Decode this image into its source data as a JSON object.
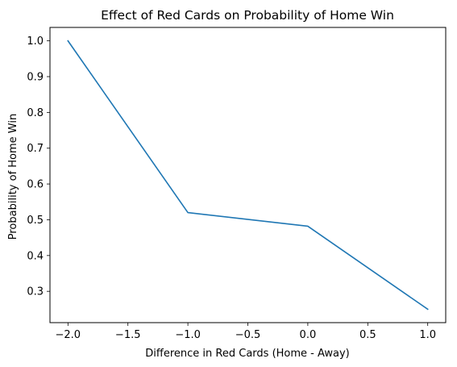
{
  "chart_data": {
    "type": "line",
    "title": "Effect of Red Cards on Probability of Home Win",
    "xlabel": "Difference in Red Cards (Home - Away)",
    "ylabel": "Probability of Home Win",
    "x": [
      -2.0,
      -1.0,
      0.0,
      1.0
    ],
    "series": [
      {
        "values": [
          1.0,
          0.52,
          0.482,
          0.25
        ]
      }
    ],
    "xlim": [
      -2.15,
      1.15
    ],
    "ylim": [
      0.2125,
      1.0375
    ],
    "xticks": [
      -2.0,
      -1.5,
      -1.0,
      -0.5,
      0.0,
      0.5,
      1.0
    ],
    "xtick_labels": [
      "−2.0",
      "−1.5",
      "−1.0",
      "−0.5",
      "0.0",
      "0.5",
      "1.0"
    ],
    "yticks": [
      0.3,
      0.4,
      0.5,
      0.6,
      0.7,
      0.8,
      0.9,
      1.0
    ],
    "ytick_labels": [
      "0.3",
      "0.4",
      "0.5",
      "0.6",
      "0.7",
      "0.8",
      "0.9",
      "1.0"
    ],
    "grid": false,
    "line_color": "#1f77b4"
  }
}
